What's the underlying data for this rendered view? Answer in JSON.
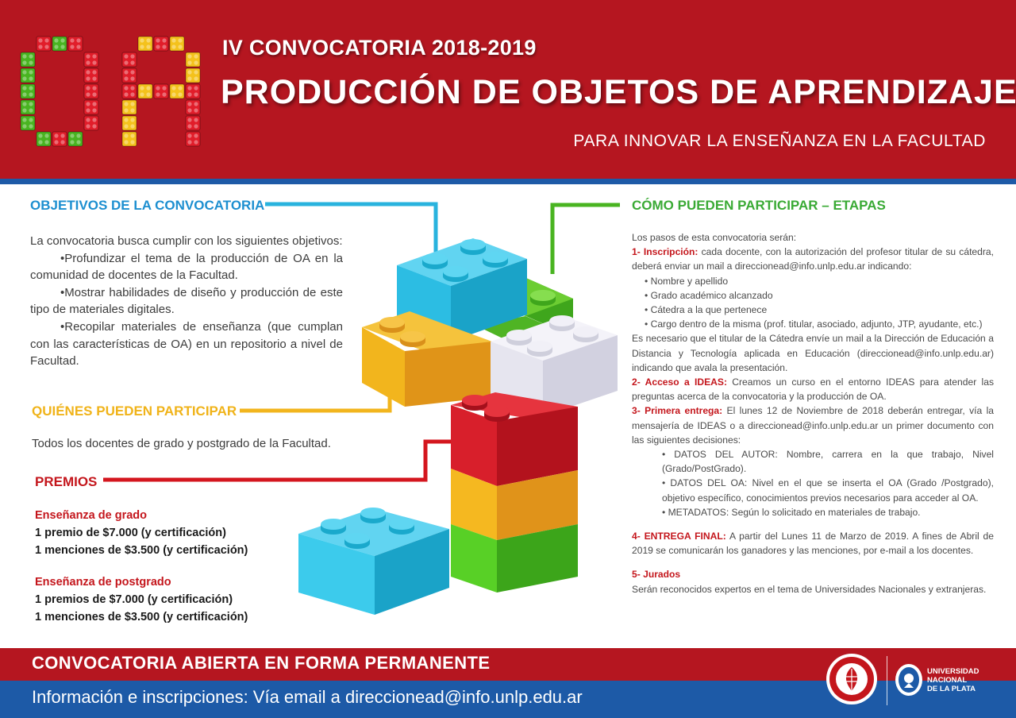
{
  "header": {
    "logo_letters": "OA",
    "edition": "IV CONVOCATORIA 2018-2019",
    "title": "PRODUCCIÓN DE OBJETOS DE APRENDIZAJE",
    "subtitle": "PARA INNOVAR LA ENSEÑANZA EN LA FACULTAD"
  },
  "colors": {
    "brand_red": "#b51620",
    "brand_blue": "#1d5aa7",
    "objetivos_blue": "#1d8fd0",
    "quienes_yellow": "#f0b319",
    "premios_red": "#c4161c",
    "etapas_green": "#3aaa35"
  },
  "objetivos": {
    "title": "OBJETIVOS DE LA CONVOCATORIA",
    "intro": "La convocatoria busca cumplir con los siguientes objetivos:",
    "bullets": [
      "•Profundizar el tema de la producción de OA en la comunidad de docentes de la Facultad.",
      "•Mostrar habilidades de diseño y producción de este tipo de materiales digitales.",
      "•Recopilar materiales de enseñanza (que cumplan con las características de OA) en un repositorio a nivel de Facultad."
    ]
  },
  "quienes": {
    "title": "QUIÉNES PUEDEN PARTICIPAR",
    "text": "Todos los docentes de grado y postgrado de la Facultad."
  },
  "premios": {
    "title": "PREMIOS",
    "grado": {
      "heading": "Enseñanza de grado",
      "lines": [
        "1 premio de $7.000 (y certificación)",
        "1 menciones de $3.500  (y certificación)"
      ]
    },
    "postgrado": {
      "heading": "Enseñanza de postgrado",
      "lines": [
        "1 premios de $7.000 (y certificación)",
        "1 menciones de $3.500 (y certificación)"
      ]
    }
  },
  "etapas": {
    "title": "CÓMO PUEDEN PARTICIPAR – ETAPAS",
    "intro": "Los pasos de esta convocatoria serán:",
    "step1_label": "1- Inscripción:",
    "step1_text": " cada docente, con la autorización del profesor titular de su cátedra, deberá enviar un mail a direccionead@info.unlp.edu.ar indicando:",
    "step1_items": [
      "• Nombre y apellido",
      "• Grado académico alcanzado",
      "• Cátedra a la que pertenece",
      "• Cargo dentro de la misma (prof. titular, asociado, adjunto, JTP, ayudante, etc.)"
    ],
    "step1_note": "Es necesario que el titular de la Cátedra envíe un mail a la Dirección de Educación a Distancia y Tecnología aplicada en Educación (direccionead@info.unlp.edu.ar) indicando que avala la presentación.",
    "step2_label": "2- Acceso a IDEAS:",
    "step2_text": " Creamos un curso en el entorno IDEAS para atender las preguntas acerca de la convocatoria y la producción de OA.",
    "step3_label": "3- Primera entrega:",
    "step3_text": " El lunes 12 de Noviembre de 2018 deberán entregar, vía la mensajería de IDEAS o a direccionead@info.unlp.edu.ar un primer documento con las siguientes decisiones:",
    "step3_items": [
      "• DATOS DEL AUTOR: Nombre, carrera en la que trabajo, Nivel (Grado/PostGrado).",
      "• DATOS DEL OA: Nivel en el que se inserta el OA (Grado /Postgrado), objetivo específico, conocimientos previos necesarios para acceder al OA.",
      "• METADATOS: Según lo solicitado en materiales de trabajo."
    ],
    "step4_label": "4- ENTREGA FINAL:",
    "step4_text": " A partir del Lunes 11 de Marzo de 2019. A fines de Abril de 2019 se comunicarán los ganadores y las menciones, por e-mail a los docentes.",
    "step5_label": "5- Jurados",
    "step5_text": "Serán reconocidos expertos en el tema de Universidades Nacionales y extranjeras."
  },
  "footer": {
    "title": "CONVOCATORIA ABIERTA EN FORMA PERMANENTE",
    "info": "Información e inscripciones: Vía email a direccionead@info.unlp.edu.ar",
    "university": [
      "UNIVERSIDAD",
      "NACIONAL",
      "DE LA PLATA"
    ]
  }
}
